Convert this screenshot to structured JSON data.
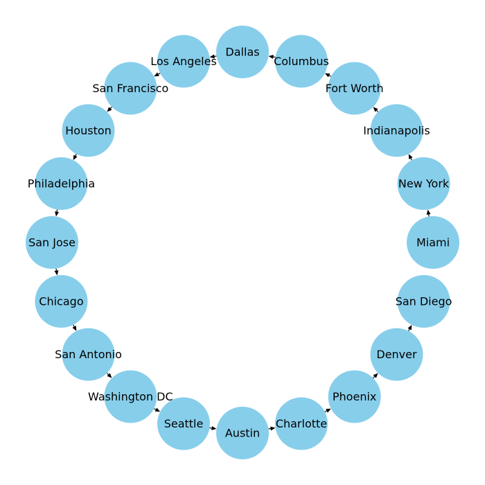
{
  "diagram": {
    "type": "directed-graph",
    "layout": "circular",
    "colors": {
      "node_fill": "#87ceeb",
      "edge": "#000000",
      "label": "#000000",
      "background": "#ffffff"
    },
    "nodes": [
      "Miami",
      "New York",
      "Indianapolis",
      "Fort Worth",
      "Columbus",
      "Dallas",
      "Los Angeles",
      "San Francisco",
      "Houston",
      "Philadelphia",
      "San Jose",
      "Chicago",
      "San Antonio",
      "Washington DC",
      "Seattle",
      "Austin",
      "Charlotte",
      "Phoenix",
      "Denver",
      "San Diego"
    ],
    "edges": [
      [
        "Miami",
        "New York"
      ],
      [
        "New York",
        "Indianapolis"
      ],
      [
        "Indianapolis",
        "Fort Worth"
      ],
      [
        "Fort Worth",
        "Columbus"
      ],
      [
        "Columbus",
        "Dallas"
      ],
      [
        "Dallas",
        "Los Angeles"
      ],
      [
        "Los Angeles",
        "San Francisco"
      ],
      [
        "San Francisco",
        "Houston"
      ],
      [
        "Houston",
        "Philadelphia"
      ],
      [
        "Philadelphia",
        "San Jose"
      ],
      [
        "San Jose",
        "Chicago"
      ],
      [
        "Chicago",
        "San Antonio"
      ],
      [
        "San Antonio",
        "Washington DC"
      ],
      [
        "Washington DC",
        "Seattle"
      ],
      [
        "Seattle",
        "Austin"
      ],
      [
        "Austin",
        "Charlotte"
      ],
      [
        "Charlotte",
        "Phoenix"
      ],
      [
        "Phoenix",
        "Denver"
      ],
      [
        "Denver",
        "San Diego"
      ]
    ]
  }
}
